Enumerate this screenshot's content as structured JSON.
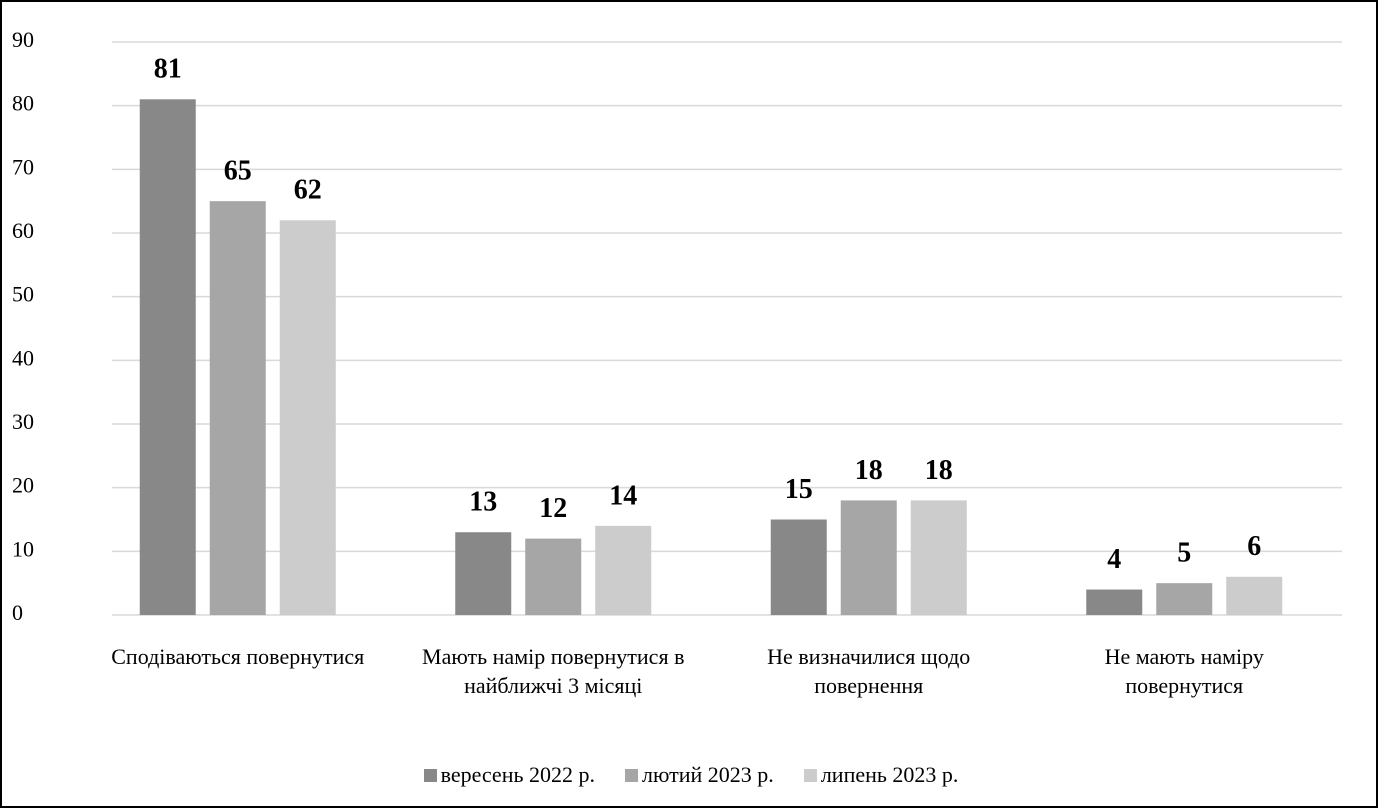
{
  "chart_data": {
    "type": "bar",
    "categories": [
      "Сподіваються повернутися",
      "Мають намір повернутися в найближчі 3 місяці",
      "Не визначилися щодо повернення",
      "Не мають наміру повернутися"
    ],
    "series": [
      {
        "name": "вересень 2022 р.",
        "color": "#888888",
        "values": [
          81,
          13,
          15,
          4
        ]
      },
      {
        "name": "лютий 2023 р.",
        "color": "#a6a6a6",
        "values": [
          65,
          12,
          18,
          5
        ]
      },
      {
        "name": "липень 2023 р.",
        "color": "#cccccc",
        "values": [
          62,
          14,
          18,
          6
        ]
      }
    ],
    "ylim": [
      0,
      90
    ],
    "yticks": [
      0,
      10,
      20,
      30,
      40,
      50,
      60,
      70,
      80,
      90
    ],
    "grid": true,
    "legend": "bottom"
  }
}
